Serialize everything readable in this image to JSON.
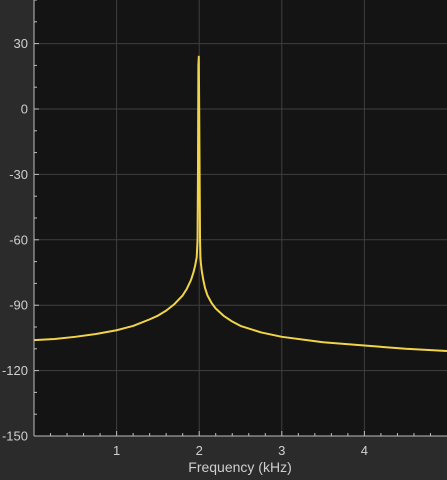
{
  "chart_data": {
    "type": "line",
    "title": "",
    "xlabel": "Frequency (kHz)",
    "ylabel": "",
    "xlim": [
      0,
      5
    ],
    "ylim": [
      -150,
      50
    ],
    "x_ticks": [
      {
        "value": 1,
        "label": "1"
      },
      {
        "value": 2,
        "label": "2"
      },
      {
        "value": 3,
        "label": "3"
      },
      {
        "value": 4,
        "label": "4"
      }
    ],
    "y_ticks": [
      {
        "value": 30,
        "label": "30"
      },
      {
        "value": 0,
        "label": "0"
      },
      {
        "value": -30,
        "label": "-30"
      },
      {
        "value": -60,
        "label": "-60"
      },
      {
        "value": -90,
        "label": "-90"
      },
      {
        "value": -120,
        "label": "-120"
      },
      {
        "value": -150,
        "label": "-150"
      }
    ],
    "grid": true,
    "series": [
      {
        "color": "#f2d44a",
        "x": [
          0,
          0.25,
          0.5,
          0.75,
          1.0,
          1.2,
          1.4,
          1.5,
          1.6,
          1.7,
          1.8,
          1.85,
          1.9,
          1.93,
          1.95,
          1.97,
          1.98,
          1.985,
          1.99,
          1.995,
          2.0,
          2.005,
          2.01,
          2.015,
          2.02,
          2.03,
          2.05,
          2.07,
          2.1,
          2.15,
          2.2,
          2.3,
          2.4,
          2.5,
          2.75,
          3.0,
          3.5,
          4.0,
          4.5,
          5.0
        ],
        "y": [
          -106,
          -105.5,
          -104.5,
          -103.2,
          -101.5,
          -99.5,
          -96.5,
          -94.8,
          -92.5,
          -89.5,
          -85.5,
          -82.5,
          -78.5,
          -75,
          -72,
          -68,
          -60,
          -30,
          20,
          24,
          0,
          -30,
          -60,
          -68,
          -70.5,
          -74,
          -78.5,
          -82,
          -85.5,
          -89,
          -91.5,
          -95,
          -97.5,
          -99.5,
          -102.5,
          -104.5,
          -107,
          -108.5,
          -110,
          -111
        ]
      }
    ]
  }
}
